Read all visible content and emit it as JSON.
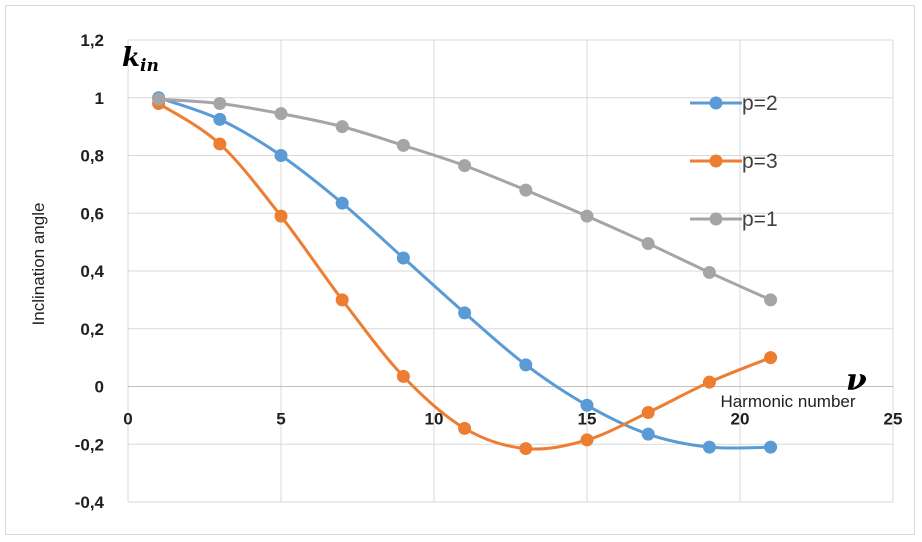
{
  "chart_data": {
    "type": "line",
    "x": [
      1,
      3,
      5,
      7,
      9,
      11,
      13,
      15,
      17,
      19,
      21
    ],
    "series": [
      {
        "name": "p=2",
        "color": "#5b9bd5",
        "values": [
          1.0,
          0.925,
          0.8,
          0.635,
          0.445,
          0.255,
          0.075,
          -0.065,
          -0.165,
          -0.21,
          -0.21
        ]
      },
      {
        "name": "p=3",
        "color": "#ed7d31",
        "values": [
          0.98,
          0.84,
          0.59,
          0.3,
          0.035,
          -0.145,
          -0.215,
          -0.185,
          -0.09,
          0.015,
          0.1
        ]
      },
      {
        "name": "p=1",
        "color": "#a5a5a5",
        "values": [
          0.995,
          0.98,
          0.945,
          0.9,
          0.835,
          0.765,
          0.68,
          0.59,
          0.495,
          0.395,
          0.3
        ]
      }
    ],
    "xlim": [
      0,
      25
    ],
    "ylim": [
      -0.4,
      1.2
    ],
    "x_ticks": [
      "0",
      "5",
      "10",
      "15",
      "20",
      "25"
    ],
    "y_ticks": [
      "1,2",
      "1",
      "0,8",
      "0,6",
      "0,4",
      "0,2",
      "0",
      "-0,2",
      "-0,4"
    ],
    "ylabel": "Inclination angle",
    "xlabel": "Harmonic number",
    "y_symbol": "k",
    "y_symbol_sub": "in",
    "x_symbol": "ν",
    "grid": true,
    "legend_position": "right",
    "smooth": true,
    "markers": true
  }
}
